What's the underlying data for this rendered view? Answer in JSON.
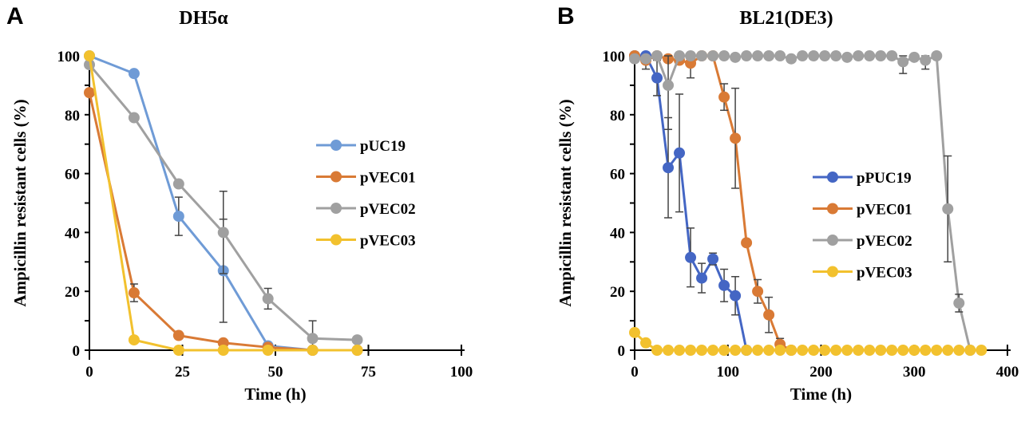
{
  "chart_data": [
    {
      "panel": "A",
      "type": "line",
      "title": "DH5α",
      "xlabel": "Time (h)",
      "ylabel": "Ampicillin resistant cells (%)",
      "xlim": [
        0,
        100
      ],
      "ylim": [
        0,
        100
      ],
      "xticks": [
        0,
        25,
        50,
        75,
        100
      ],
      "yticks": [
        0,
        20,
        40,
        60,
        80,
        100
      ],
      "grid": false,
      "legend": "right",
      "series": [
        {
          "name": "pUC19",
          "color": "#6f9bd6",
          "x": [
            0,
            12,
            24,
            36,
            48,
            60
          ],
          "values": [
            100,
            94,
            45.5,
            27,
            1.5,
            0
          ],
          "err": [
            0,
            0,
            6.5,
            17.5,
            0,
            0
          ]
        },
        {
          "name": "pVEC01",
          "color": "#d97a35",
          "x": [
            0,
            12,
            24,
            36,
            48,
            60,
            72
          ],
          "values": [
            87.5,
            19.5,
            5,
            2.5,
            1,
            0,
            0
          ],
          "err": [
            0,
            3,
            0,
            0,
            0,
            0,
            0
          ]
        },
        {
          "name": "pVEC02",
          "color": "#a0a0a0",
          "x": [
            0,
            12,
            24,
            36,
            48,
            60,
            72
          ],
          "values": [
            97,
            79,
            56.5,
            40,
            17.5,
            4,
            3.5
          ],
          "err": [
            0,
            0,
            0,
            14,
            3.5,
            6,
            0
          ]
        },
        {
          "name": "pVEC03",
          "color": "#f2c12e",
          "x": [
            0,
            12,
            24,
            36,
            48,
            60,
            72
          ],
          "values": [
            100,
            3.5,
            0,
            0,
            0,
            0,
            0
          ],
          "err": [
            0,
            0,
            0,
            0,
            0,
            0,
            0
          ]
        }
      ]
    },
    {
      "panel": "B",
      "type": "line",
      "title": "BL21(DE3)",
      "xlabel": "Time (h)",
      "ylabel": "Ampicillin resistant cells (%)",
      "xlim": [
        0,
        400
      ],
      "ylim": [
        0,
        100
      ],
      "xticks": [
        0,
        100,
        200,
        300,
        400
      ],
      "yticks": [
        0,
        20,
        40,
        60,
        80,
        100
      ],
      "grid": false,
      "legend": "center-right",
      "series": [
        {
          "name": "pPUC19",
          "color": "#4466c4",
          "x": [
            0,
            12,
            24,
            36,
            48,
            60,
            72,
            84,
            96,
            108,
            120
          ],
          "values": [
            100,
            100,
            92.5,
            62,
            67,
            31.5,
            24.5,
            31,
            22,
            18.5,
            0
          ],
          "err": [
            0,
            0,
            6,
            17,
            20,
            10,
            5,
            2,
            5.5,
            6.5,
            0
          ]
        },
        {
          "name": "pVEC01",
          "color": "#d97a35",
          "x": [
            0,
            12,
            24,
            36,
            48,
            60,
            72,
            84,
            96,
            108,
            120,
            132,
            144,
            156,
            168
          ],
          "values": [
            100,
            98.5,
            100,
            99,
            98.5,
            97.5,
            100,
            100,
            86,
            72,
            36.5,
            20,
            12,
            2,
            0
          ],
          "err": [
            0,
            3,
            0,
            0,
            0,
            5,
            0,
            0,
            4.5,
            17,
            1,
            4,
            6,
            2,
            0
          ]
        },
        {
          "name": "pVEC02",
          "color": "#a0a0a0",
          "x": [
            0,
            12,
            24,
            36,
            48,
            60,
            72,
            84,
            96,
            108,
            120,
            132,
            144,
            156,
            168,
            180,
            192,
            204,
            216,
            228,
            240,
            252,
            264,
            276,
            288,
            300,
            312,
            324,
            336,
            348,
            360
          ],
          "values": [
            99,
            99,
            100,
            90,
            100,
            100,
            100,
            100,
            100,
            99.5,
            100,
            100,
            100,
            100,
            99,
            100,
            100,
            100,
            100,
            99.5,
            100,
            100,
            100,
            100,
            98,
            99.5,
            98.5,
            100,
            48,
            16,
            0
          ],
          "err": [
            0,
            0,
            0,
            15,
            0,
            0,
            0,
            0,
            0,
            0,
            0,
            0,
            0,
            0,
            0,
            0,
            0,
            0,
            0,
            0,
            0,
            0,
            0,
            0,
            4,
            0,
            3,
            0,
            18,
            3,
            0
          ]
        },
        {
          "name": "pVEC03",
          "color": "#f2c12e",
          "x": [
            0,
            12,
            24,
            36,
            48,
            60,
            72,
            84,
            96,
            108,
            120,
            132,
            144,
            156,
            168,
            180,
            192,
            204,
            216,
            228,
            240,
            252,
            264,
            276,
            288,
            300,
            312,
            324,
            336,
            348,
            360,
            372
          ],
          "values": [
            6,
            2.5,
            0,
            0,
            0,
            0,
            0,
            0,
            0,
            0,
            0,
            0,
            0,
            0,
            0,
            0,
            0,
            0,
            0,
            0,
            0,
            0,
            0,
            0,
            0,
            0,
            0,
            0,
            0,
            0,
            0,
            0
          ],
          "err": []
        }
      ]
    }
  ]
}
